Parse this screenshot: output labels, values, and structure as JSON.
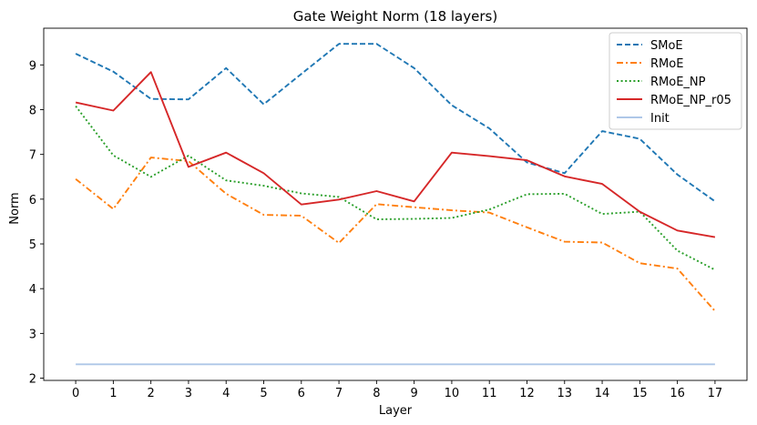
{
  "chart_data": {
    "type": "line",
    "title": "Gate Weight Norm (18 layers)",
    "xlabel": "Layer",
    "ylabel": "Norm",
    "x": [
      0,
      1,
      2,
      3,
      4,
      5,
      6,
      7,
      8,
      9,
      10,
      11,
      12,
      13,
      14,
      15,
      16,
      17
    ],
    "xlim": [
      -0.85,
      17.85
    ],
    "ylim": [
      1.95,
      9.82
    ],
    "yticks": [
      2,
      3,
      4,
      5,
      6,
      7,
      8,
      9
    ],
    "grid": false,
    "legend": "top-right",
    "series": [
      {
        "name": "SMoE",
        "color": "#1f77b4",
        "style": "dashed",
        "values": [
          9.25,
          8.85,
          8.24,
          8.23,
          8.93,
          8.12,
          8.8,
          9.47,
          9.47,
          8.93,
          8.1,
          7.58,
          6.82,
          6.58,
          7.52,
          7.35,
          6.55,
          5.95
        ]
      },
      {
        "name": "RMoE",
        "color": "#ff7f0e",
        "style": "dashdot",
        "values": [
          6.45,
          5.78,
          6.93,
          6.85,
          6.12,
          5.65,
          5.63,
          5.02,
          5.89,
          5.82,
          5.75,
          5.7,
          5.37,
          5.05,
          5.03,
          4.57,
          4.45,
          3.5
        ]
      },
      {
        "name": "RMoE_NP",
        "color": "#2ca02c",
        "style": "dotted",
        "values": [
          8.08,
          6.98,
          6.5,
          6.97,
          6.42,
          6.3,
          6.13,
          6.05,
          5.55,
          5.56,
          5.58,
          5.77,
          6.11,
          6.12,
          5.67,
          5.72,
          4.85,
          4.42
        ]
      },
      {
        "name": "RMoE_NP_r05",
        "color": "#d62728",
        "style": "solid",
        "values": [
          8.16,
          7.98,
          8.84,
          6.72,
          7.04,
          6.58,
          5.88,
          5.99,
          6.18,
          5.95,
          7.04,
          6.96,
          6.87,
          6.51,
          6.34,
          5.72,
          5.3,
          5.15
        ]
      },
      {
        "name": "Init",
        "color": "#aec7e8",
        "style": "solid",
        "values": [
          2.31,
          2.31,
          2.31,
          2.31,
          2.31,
          2.31,
          2.31,
          2.31,
          2.31,
          2.31,
          2.31,
          2.31,
          2.31,
          2.31,
          2.31,
          2.31,
          2.31,
          2.31
        ]
      }
    ]
  }
}
